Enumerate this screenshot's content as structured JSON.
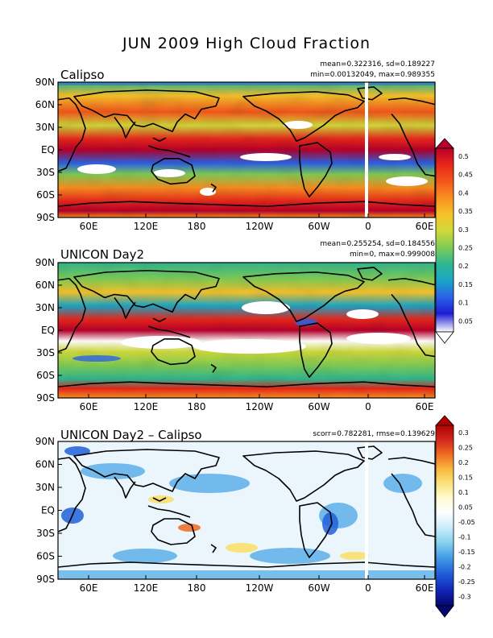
{
  "figure_title": "JUN 2009 High Cloud Fraction",
  "panels": [
    {
      "title": "Calipso",
      "stats_line1": "mean=0.322316, sd=0.189227",
      "stats_line2": "min=0.00132049, max=0.989355"
    },
    {
      "title": "UNICON Day2",
      "stats_line1": "mean=0.255254, sd=0.184556",
      "stats_line2": "min=0, max=0.999008"
    },
    {
      "title": "UNICON Day2 – Calipso",
      "stats_line1": "scorr=0.782281, rmse=0.139629",
      "stats_line2": ""
    }
  ],
  "lat_labels": [
    "90N",
    "60N",
    "30N",
    "EQ",
    "30S",
    "60S",
    "90S"
  ],
  "lon_labels": [
    "60E",
    "120E",
    "180",
    "120W",
    "60W",
    "0",
    "60E"
  ],
  "colorbar_abs": {
    "labels": [
      "0.5",
      "0.45",
      "0.4",
      "0.35",
      "0.3",
      "0.25",
      "0.2",
      "0.15",
      "0.1",
      "0.05"
    ],
    "colors": [
      "#b8002a",
      "#e8261b",
      "#f4561b",
      "#f98f1f",
      "#f6c22a",
      "#cfd93a",
      "#80cc55",
      "#2fb78f",
      "#1aa6c7",
      "#2a63e6",
      "#1c1cd6",
      "#ffffff"
    ]
  },
  "colorbar_diff": {
    "labels": [
      "0.3",
      "0.25",
      "0.2",
      "0.15",
      "0.1",
      "0.05",
      "-0.05",
      "-0.1",
      "-0.15",
      "-0.2",
      "-0.25",
      "-0.3"
    ],
    "colors": [
      "#b00000",
      "#d3261c",
      "#ee6a20",
      "#f9b63c",
      "#f9e27a",
      "#fffbd0",
      "#ffffff",
      "#cfeefa",
      "#8fd6f1",
      "#4aa6e6",
      "#2060d8",
      "#1228b8",
      "#05056e"
    ]
  }
}
